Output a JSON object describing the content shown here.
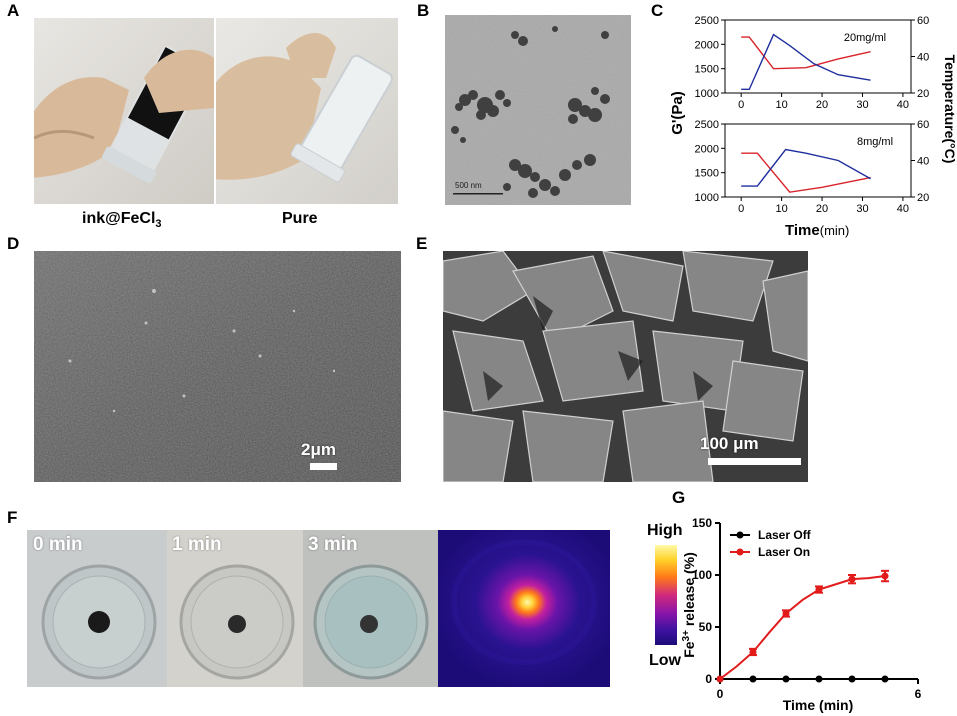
{
  "panels": {
    "A": {
      "label": "A",
      "captions": {
        "left": "ink@FeCl",
        "left_sub": "3",
        "right": "Pure"
      }
    },
    "B": {
      "label": "B",
      "scalebar": "500 nm"
    },
    "C": {
      "label": "C",
      "xlabel": "Time",
      "xunit": "min",
      "ylabel_left": "G'(Pa)",
      "ylabel_right": "Temperature(°C)",
      "xticks": [
        "0",
        "10",
        "20",
        "30",
        "40"
      ],
      "top": {
        "tag": "20mg/ml",
        "yticks_left": [
          "1000",
          "1500",
          "2000",
          "2500"
        ],
        "yticks_right": [
          "20",
          "40",
          "60"
        ]
      },
      "bottom": {
        "tag": "8mg/ml",
        "yticks_left": [
          "1000",
          "1500",
          "2000",
          "2500"
        ],
        "yticks_right": [
          "20",
          "40",
          "60"
        ]
      }
    },
    "D": {
      "label": "D",
      "scalebar": "2μm"
    },
    "E": {
      "label": "E",
      "scalebar": "100 μm"
    },
    "F": {
      "label": "F",
      "times": [
        "0 min",
        "1 min",
        "3 min"
      ],
      "colorbar_high": "High",
      "colorbar_low": "Low"
    },
    "G": {
      "label": "G",
      "ylabel_main": "Fe",
      "ylabel_sup": "3+",
      "ylabel_rest": " release (%)",
      "xlabel": "Time (min)",
      "xticks": [
        "0",
        "6"
      ],
      "yticks": [
        "0",
        "50",
        "100",
        "150"
      ],
      "legend": [
        "Laser Off",
        "Laser On"
      ]
    }
  },
  "chart_data": [
    {
      "type": "line",
      "panel": "C-top",
      "tag": "20mg/ml",
      "xlabel": "Time(min)",
      "ylabel": "G'(Pa)",
      "ylabel_right": "Temperature(°C)",
      "xlim": [
        -4,
        42
      ],
      "ylim": [
        1000,
        2500
      ],
      "ylim_right": [
        20,
        60
      ],
      "series": [
        {
          "axis": "left",
          "color": "#d8232a",
          "x": [
            0,
            2,
            8,
            16,
            24,
            32
          ],
          "y": [
            2150,
            2150,
            1500,
            1520,
            1700,
            1850
          ]
        },
        {
          "axis": "right",
          "color": "#1f2f9e",
          "x": [
            0,
            2,
            8,
            12,
            18,
            24,
            32
          ],
          "y": [
            22,
            22,
            52,
            46,
            36,
            30,
            27
          ]
        }
      ]
    },
    {
      "type": "line",
      "panel": "C-bottom",
      "tag": "8mg/ml",
      "xlabel": "Time(min)",
      "ylabel": "G'(Pa)",
      "ylabel_right": "Temperature(°C)",
      "xlim": [
        -4,
        42
      ],
      "ylim": [
        1000,
        2500
      ],
      "ylim_right": [
        20,
        60
      ],
      "series": [
        {
          "axis": "left",
          "color": "#d8232a",
          "x": [
            0,
            4,
            12,
            20,
            32
          ],
          "y": [
            1900,
            1900,
            1100,
            1200,
            1400
          ]
        },
        {
          "axis": "right",
          "color": "#1f2f9e",
          "x": [
            0,
            4,
            11,
            16,
            24,
            32
          ],
          "y": [
            26,
            26,
            46,
            44,
            40,
            30
          ]
        }
      ]
    },
    {
      "type": "line",
      "panel": "G",
      "xlabel": "Time (min)",
      "ylabel": "Fe3+ release (%)",
      "xlim": [
        0,
        6
      ],
      "ylim": [
        0,
        150
      ],
      "legend_position": "top-left",
      "series": [
        {
          "name": "Laser Off",
          "color": "#000000",
          "x": [
            0,
            0.5,
            1,
            1.5,
            2,
            2.5,
            3,
            3.5,
            4,
            4.5,
            5
          ],
          "y": [
            0,
            0,
            0,
            0,
            0,
            0,
            0,
            0,
            0,
            0,
            0
          ]
        },
        {
          "name": "Laser On",
          "color": "#e21b1b",
          "x": [
            0,
            0.5,
            1,
            1.5,
            2,
            2.5,
            3,
            3.5,
            4,
            4.5,
            5
          ],
          "y": [
            0,
            12,
            26,
            45,
            63,
            76,
            86,
            91,
            96,
            97,
            99
          ],
          "error": [
            0,
            2,
            3,
            3,
            3,
            3,
            3,
            3,
            4,
            4,
            5
          ]
        }
      ]
    }
  ]
}
